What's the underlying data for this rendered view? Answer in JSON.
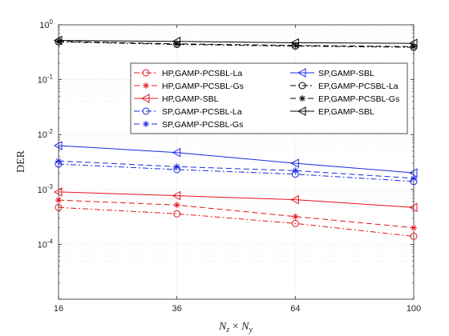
{
  "chart_data": {
    "type": "line",
    "title": "",
    "xlabel_parts": [
      "N",
      "z",
      " × ",
      "N",
      "y"
    ],
    "ylabel": "DER",
    "x": [
      16,
      36,
      64,
      100
    ],
    "x_tick_labels": [
      "16",
      "36",
      "64",
      "100"
    ],
    "y_scale": "log",
    "ylim": [
      1e-05,
      1
    ],
    "y_tick_exponents": [
      "0",
      "-1",
      "-2",
      "-3",
      "-4"
    ],
    "grid": true,
    "legend_placement": "top-right",
    "colors": {
      "HP": "#e8141c",
      "SP": "#1a2be0",
      "EP": "#000000"
    },
    "series": [
      {
        "name": "HP,GAMP-PCSBL-La",
        "group": "HP",
        "dash": "dashdot",
        "marker": "circle",
        "values": [
          0.00047,
          0.00036,
          0.00024,
          0.00014
        ]
      },
      {
        "name": "HP,GAMP-PCSBL-Gs",
        "group": "HP",
        "dash": "dashed",
        "marker": "asterisk",
        "values": [
          0.00064,
          0.00052,
          0.00032,
          0.0002
        ]
      },
      {
        "name": "HP,GAMP-SBL",
        "group": "HP",
        "dash": "solid",
        "marker": "triangle-left",
        "values": [
          0.0009,
          0.00077,
          0.00065,
          0.00047
        ]
      },
      {
        "name": "SP,GAMP-PCSBL-La",
        "group": "SP",
        "dash": "dashdot",
        "marker": "circle",
        "values": [
          0.0029,
          0.0023,
          0.0019,
          0.0014
        ]
      },
      {
        "name": "SP,GAMP-PCSBL-Gs",
        "group": "SP",
        "dash": "dashed",
        "marker": "asterisk",
        "values": [
          0.0033,
          0.0026,
          0.0022,
          0.0016
        ]
      },
      {
        "name": "SP,GAMP-SBL",
        "group": "SP",
        "dash": "solid",
        "marker": "triangle-left",
        "values": [
          0.0063,
          0.0047,
          0.003,
          0.002
        ]
      },
      {
        "name": "EP,GAMP-PCSBL-La",
        "group": "EP",
        "dash": "dashdot",
        "marker": "circle",
        "values": [
          0.49,
          0.44,
          0.41,
          0.39
        ]
      },
      {
        "name": "EP,GAMP-PCSBL-Gs",
        "group": "EP",
        "dash": "dashed",
        "marker": "asterisk",
        "values": [
          0.5,
          0.45,
          0.42,
          0.4
        ]
      },
      {
        "name": "EP,GAMP-SBL",
        "group": "EP",
        "dash": "solid",
        "marker": "triangle-left",
        "values": [
          0.52,
          0.5,
          0.47,
          0.46
        ]
      }
    ],
    "legend_columns": [
      [
        "HP,GAMP-PCSBL-La",
        "HP,GAMP-PCSBL-Gs",
        "HP,GAMP-SBL",
        "SP,GAMP-PCSBL-La",
        "SP,GAMP-PCSBL-Gs"
      ],
      [
        "SP,GAMP-SBL",
        "EP,GAMP-PCSBL-La",
        "EP,GAMP-PCSBL-Gs",
        "EP,GAMP-SBL"
      ]
    ]
  }
}
